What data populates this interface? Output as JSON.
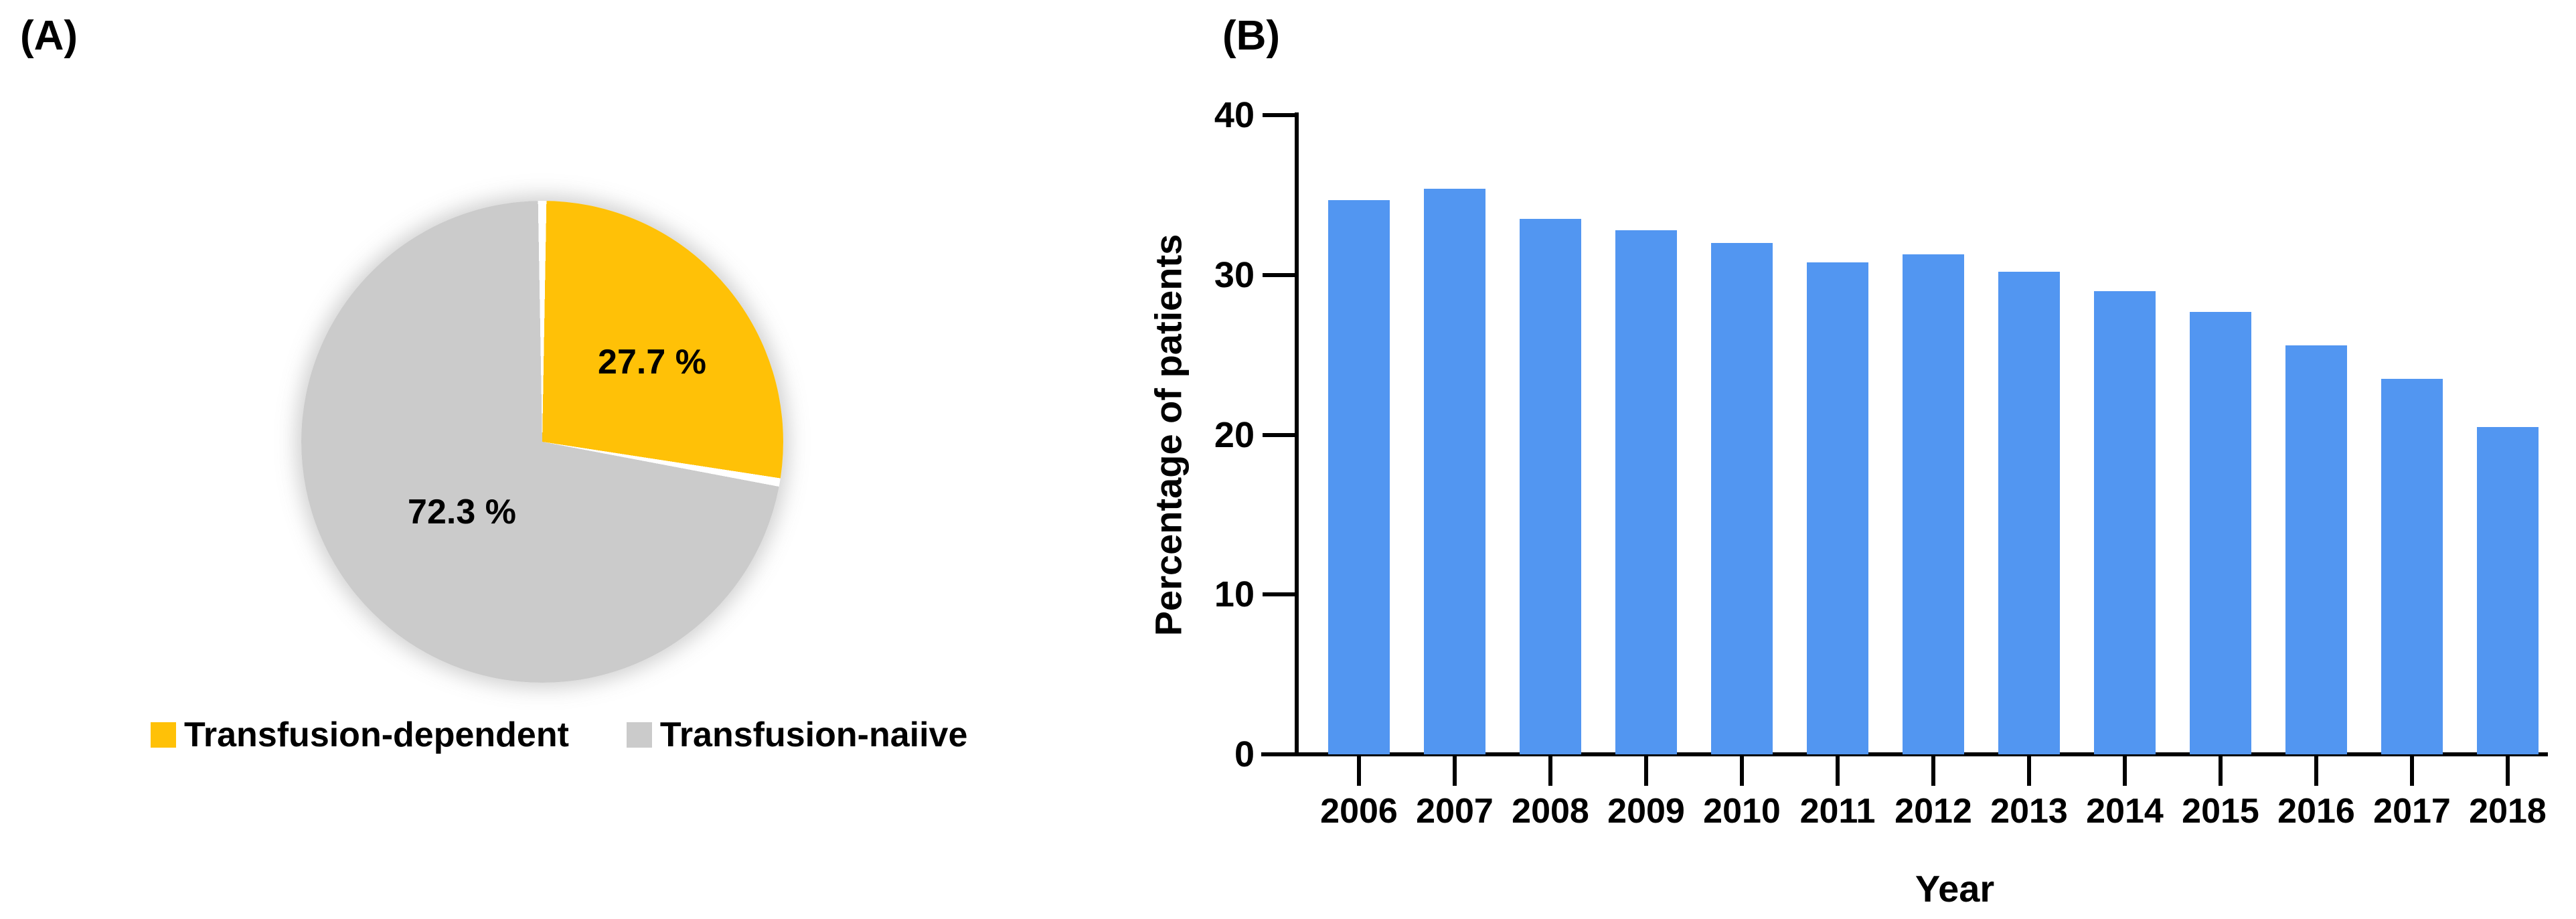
{
  "panel_a": {
    "label": "(A)",
    "legend": [
      {
        "label": "Transfusion-dependent",
        "color": "#FFC107"
      },
      {
        "label": "Transfusion-naiive",
        "color": "#CBCBCB"
      }
    ]
  },
  "panel_b": {
    "label": "(B)"
  },
  "chart_data": [
    {
      "type": "pie",
      "slices": [
        {
          "label": "Transfusion-dependent",
          "value": 27.7,
          "data_label": "27.7 %",
          "color": "#FFC107"
        },
        {
          "label": "Transfusion-naiive",
          "value": 72.3,
          "data_label": "72.3 %",
          "color": "#CBCBCB"
        }
      ],
      "unit": "%",
      "start_angle_deg": 0,
      "direction": "clockwise",
      "legend_position": "bottom",
      "separator_color": "#FFFFFF"
    },
    {
      "type": "bar",
      "categories": [
        "2006",
        "2007",
        "2008",
        "2009",
        "2010",
        "2011",
        "2012",
        "2013",
        "2014",
        "2015",
        "2016",
        "2017",
        "2018"
      ],
      "values": [
        34.7,
        35.4,
        33.5,
        32.8,
        32.0,
        30.8,
        31.3,
        30.2,
        29.0,
        27.7,
        25.6,
        23.5,
        20.5
      ],
      "title": "",
      "xlabel": "Year",
      "ylabel": "Percentage of patients",
      "ylim": [
        0,
        40
      ],
      "yticks": [
        0,
        10,
        20,
        30,
        40
      ],
      "grid": false,
      "bar_color": "#5296F1",
      "axis_color": "#000000"
    }
  ]
}
